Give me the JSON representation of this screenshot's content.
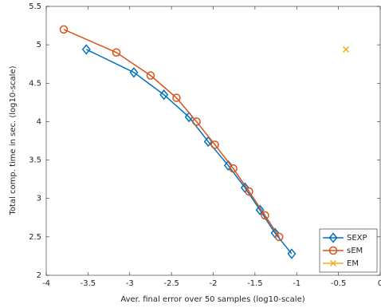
{
  "chart_data": {
    "type": "line",
    "xlabel": "Aver. final error over 50 samples (log10-scale)",
    "ylabel": "Total comp. time in sec. (log10-scale)",
    "xlim": [
      -4,
      0
    ],
    "xticks": [
      -4,
      -3.5,
      -3,
      -2.5,
      -2,
      -1.5,
      -1,
      -0.5,
      0
    ],
    "ylim": [
      2,
      5.5
    ],
    "yticks": [
      2,
      2.5,
      3,
      3.5,
      4,
      4.5,
      5,
      5.5
    ],
    "grid": false,
    "legend": "southeast",
    "series": [
      {
        "name": "SEXP",
        "color": "#0072bd",
        "marker": "diamond",
        "x": [
          -3.52,
          -2.95,
          -2.59,
          -2.29,
          -2.06,
          -1.82,
          -1.62,
          -1.44,
          -1.26,
          -1.06
        ],
        "values": [
          4.94,
          4.64,
          4.35,
          4.06,
          3.74,
          3.43,
          3.14,
          2.85,
          2.55,
          2.28
        ]
      },
      {
        "name": "sEM",
        "color": "#d95319",
        "marker": "circle",
        "x": [
          -3.79,
          -3.16,
          -2.75,
          -2.44,
          -2.2,
          -1.98,
          -1.76,
          -1.57,
          -1.38,
          -1.21
        ],
        "values": [
          5.2,
          4.9,
          4.6,
          4.31,
          4.0,
          3.7,
          3.39,
          3.09,
          2.78,
          2.5
        ]
      },
      {
        "name": "EM",
        "color": "#edb120",
        "marker": "x",
        "x": [
          -0.41
        ],
        "values": [
          4.94
        ]
      }
    ]
  }
}
